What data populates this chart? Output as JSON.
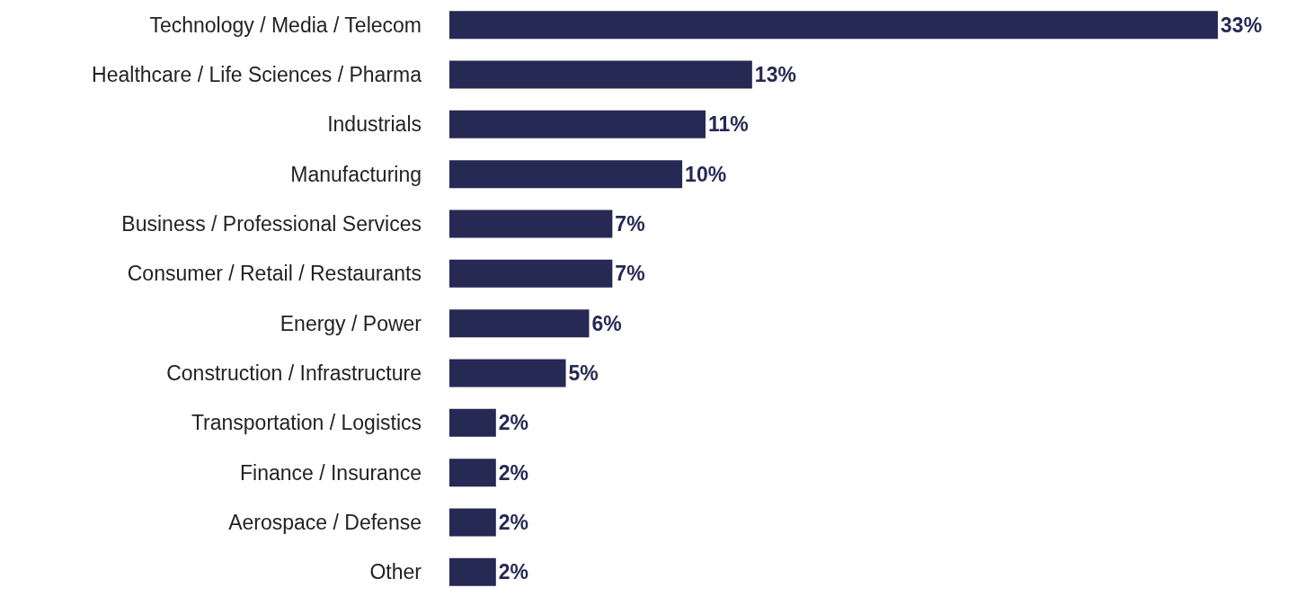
{
  "chart_data": {
    "type": "bar",
    "orientation": "horizontal",
    "categories": [
      "Technology / Media / Telecom",
      "Healthcare / Life Sciences / Pharma",
      "Industrials",
      "Manufacturing",
      "Business / Professional Services",
      "Consumer / Retail / Restaurants",
      "Energy / Power",
      "Construction / Infrastructure",
      "Transportation / Logistics",
      "Finance / Insurance",
      "Aerospace / Defense",
      "Other"
    ],
    "values": [
      33,
      13,
      11,
      10,
      7,
      7,
      6,
      5,
      2,
      2,
      2,
      2
    ],
    "value_labels": [
      "33%",
      "13%",
      "11%",
      "10%",
      "7%",
      "7%",
      "6%",
      "5%",
      "2%",
      "2%",
      "2%",
      "2%"
    ],
    "color": "#262953"
  }
}
